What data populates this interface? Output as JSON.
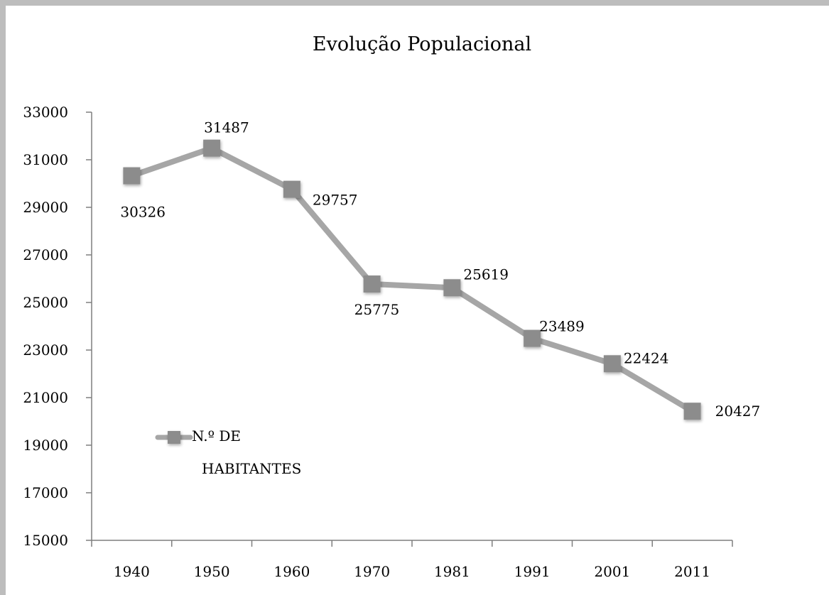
{
  "chart_data": {
    "type": "line",
    "title": "Evolução Populacional",
    "categories": [
      "1940",
      "1950",
      "1960",
      "1970",
      "1981",
      "1991",
      "2001",
      "2011"
    ],
    "series": [
      {
        "name": "N.º DE HABITANTES",
        "values": [
          30326,
          31487,
          29757,
          25775,
          25619,
          23489,
          22424,
          20427
        ]
      }
    ],
    "ylim": [
      15000,
      33000
    ],
    "yticks": [
      15000,
      17000,
      19000,
      21000,
      23000,
      25000,
      27000,
      29000,
      31000,
      33000
    ],
    "grid": false,
    "legend": {
      "position": "left",
      "line1": "N.º DE",
      "line2": "HABITANTES"
    },
    "colors": {
      "line": "#a6a6a6",
      "marker": "#8c8c8c",
      "frame": "#bdbdbd"
    }
  }
}
